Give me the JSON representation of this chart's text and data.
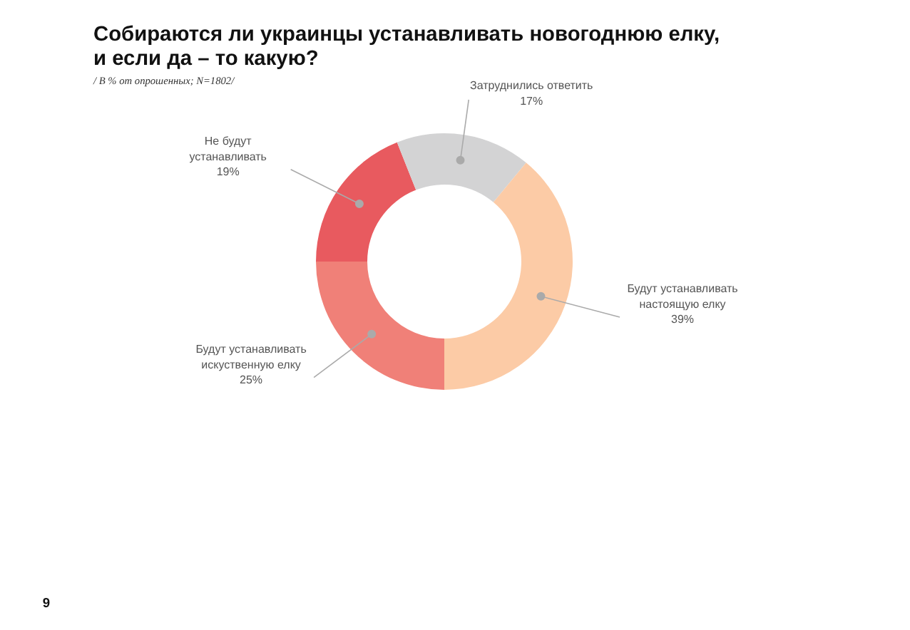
{
  "chart_data": {
    "type": "donut",
    "title": "Собираются ли украинцы устанавливать новогоднюю елку, и если да – то какую?",
    "subtitle": "/ В % от опрошенных; N=1802/",
    "categories": [
      "Будут устанавливать искуственную елку",
      "Не будут устанавливать",
      "Затруднились ответить",
      "Будут устанавливать настоящую елку"
    ],
    "values": [
      25,
      19,
      17,
      39
    ],
    "value_labels": [
      "25%",
      "19%",
      "17%",
      "39%"
    ],
    "colors": [
      "#f08078",
      "#e85a5f",
      "#d3d3d4",
      "#fccba6"
    ],
    "annotations": [
      "9"
    ]
  }
}
